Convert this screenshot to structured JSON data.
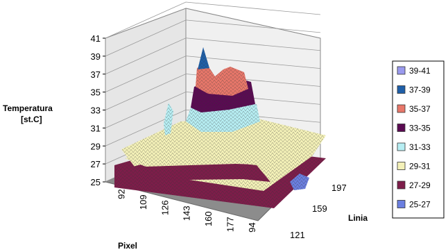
{
  "chart_data": {
    "type": "surface",
    "z_axis": {
      "label_line1": "Temperatura",
      "label_line2": "[st.C]",
      "ticks": [
        "41",
        "39",
        "37",
        "35",
        "33",
        "31",
        "29",
        "27",
        "25"
      ],
      "range": [
        25,
        41
      ]
    },
    "x_axis": {
      "label": "Pixel",
      "ticks": [
        "92",
        "109",
        "126",
        "143",
        "160",
        "177",
        "94"
      ]
    },
    "y_axis": {
      "label": "Linia",
      "ticks": [
        "197",
        "159",
        "121"
      ]
    },
    "legend": {
      "placement": "right",
      "entries": [
        {
          "label": "39-41",
          "color": "#9a9aee"
        },
        {
          "label": "37-39",
          "color": "#1f5fa8"
        },
        {
          "label": "35-37",
          "color": "#e8776a"
        },
        {
          "label": "33-35",
          "color": "#5a0a52"
        },
        {
          "label": "31-33",
          "color": "#b7eef3"
        },
        {
          "label": "29-31",
          "color": "#f4f1b8"
        },
        {
          "label": "27-29",
          "color": "#7d1d4a"
        },
        {
          "label": "25-27",
          "color": "#6b7fe0"
        }
      ]
    },
    "grid": true
  }
}
